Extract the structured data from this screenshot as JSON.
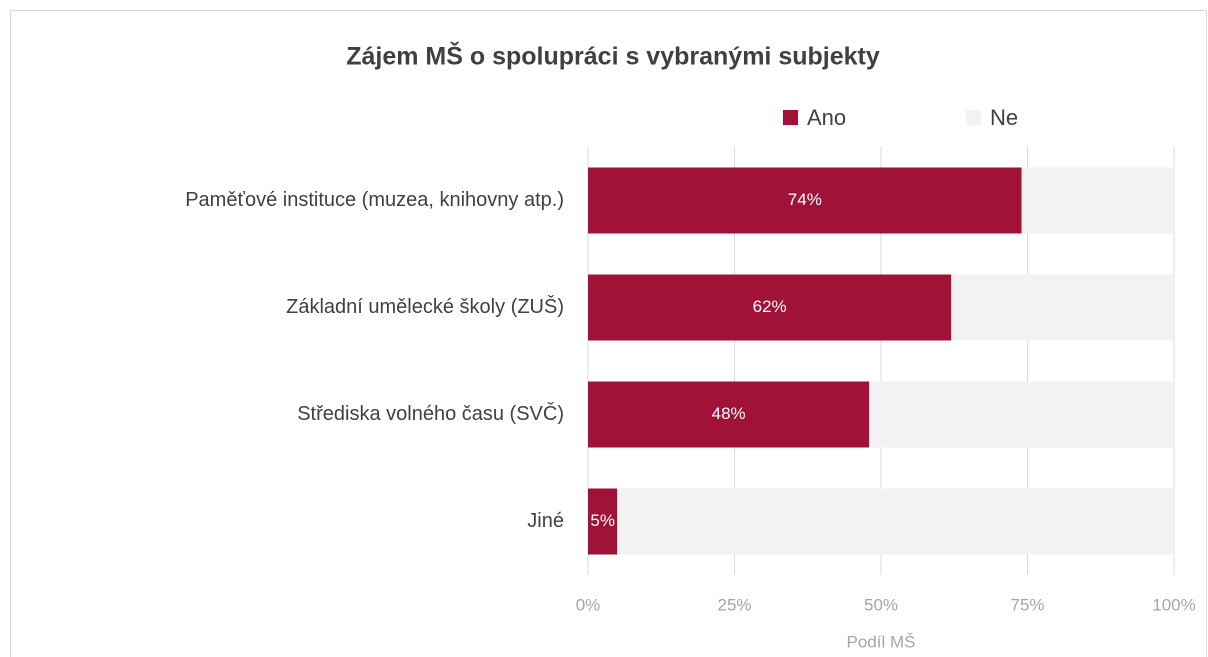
{
  "chart_data": {
    "type": "stacked-bar-horizontal",
    "title": "Zájem MŠ o spolupráci s vybranými subjekty",
    "categories": [
      "Paměťové instituce (muzea, knihovny atp.)",
      "Základní umělecké školy (ZUŠ)",
      "Střediska volného času (SVČ)",
      "Jiné"
    ],
    "series": [
      {
        "name": "Ano",
        "color": "#a01238",
        "values": [
          74,
          62,
          48,
          5
        ],
        "value_labels": [
          "74%",
          "62%",
          "48%",
          "5%"
        ]
      },
      {
        "name": "Ne",
        "color": "#f2f2f2",
        "values": [
          26,
          38,
          52,
          95
        ]
      }
    ],
    "xlabel": "Podíl MŠ",
    "xlim": [
      0,
      100
    ],
    "xticks": [
      {
        "value": 0,
        "label": "0%"
      },
      {
        "value": 25,
        "label": "25%"
      },
      {
        "value": 50,
        "label": "50%"
      },
      {
        "value": 75,
        "label": "75%"
      },
      {
        "value": 100,
        "label": "100%"
      }
    ],
    "grid": true,
    "legend": "top"
  }
}
